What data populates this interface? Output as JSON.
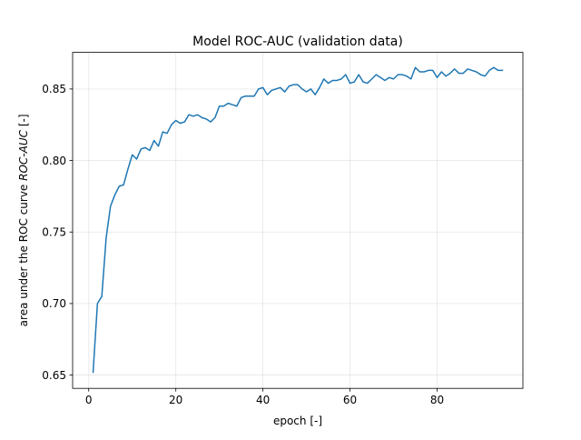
{
  "chart_data": {
    "type": "line",
    "title": "Model ROC-AUC (validation data)",
    "xlabel": "epoch [-]",
    "ylabel": "area under the ROC curve ROC-AUC [-]",
    "ylabel_parts": {
      "prefix": "area under the ROC curve ",
      "emphasis": "ROC-AUC",
      "suffix": " [-]"
    },
    "xlim": [
      -3.7,
      99.7
    ],
    "ylim": [
      0.6407,
      0.8756
    ],
    "xticks": [
      0,
      20,
      40,
      60,
      80
    ],
    "yticks": [
      0.65,
      0.7,
      0.75,
      0.8,
      0.85
    ],
    "ytick_labels": [
      "0.65",
      "0.70",
      "0.75",
      "0.80",
      "0.85"
    ],
    "grid": true,
    "line_color": "#1f77b4",
    "series": [
      {
        "x": [
          1,
          2,
          3,
          4,
          5,
          6,
          7,
          8,
          9,
          10,
          11,
          12,
          13,
          14,
          15,
          16,
          17,
          18,
          19,
          20,
          21,
          22,
          23,
          24,
          25,
          26,
          27,
          28,
          29,
          30,
          31,
          32,
          33,
          34,
          35,
          36,
          37,
          38,
          39,
          40,
          41,
          42,
          43,
          44,
          45,
          46,
          47,
          48,
          49,
          50,
          51,
          52,
          53,
          54,
          55,
          56,
          57,
          58,
          59,
          60,
          61,
          62,
          63,
          64,
          65,
          66,
          67,
          68,
          69,
          70,
          71,
          72,
          73,
          74,
          75,
          76,
          77,
          78,
          79,
          80,
          81,
          82,
          83,
          84,
          85,
          86,
          87,
          88,
          89,
          90,
          91,
          92,
          93,
          94,
          95
        ],
        "values": [
          0.652,
          0.7,
          0.705,
          0.746,
          0.768,
          0.776,
          0.782,
          0.783,
          0.794,
          0.804,
          0.801,
          0.808,
          0.809,
          0.807,
          0.814,
          0.81,
          0.82,
          0.819,
          0.825,
          0.828,
          0.826,
          0.827,
          0.832,
          0.831,
          0.832,
          0.83,
          0.829,
          0.827,
          0.83,
          0.838,
          0.838,
          0.84,
          0.839,
          0.838,
          0.844,
          0.845,
          0.845,
          0.845,
          0.85,
          0.851,
          0.846,
          0.849,
          0.85,
          0.851,
          0.848,
          0.852,
          0.853,
          0.853,
          0.85,
          0.848,
          0.85,
          0.846,
          0.851,
          0.857,
          0.854,
          0.856,
          0.856,
          0.857,
          0.86,
          0.854,
          0.855,
          0.86,
          0.855,
          0.854,
          0.857,
          0.86,
          0.858,
          0.856,
          0.858,
          0.857,
          0.86,
          0.86,
          0.859,
          0.857,
          0.865,
          0.862,
          0.862,
          0.863,
          0.863,
          0.858,
          0.862,
          0.859,
          0.861,
          0.864,
          0.861,
          0.861,
          0.864,
          0.863,
          0.862,
          0.86,
          0.859,
          0.863,
          0.865,
          0.863,
          0.863
        ]
      }
    ]
  }
}
